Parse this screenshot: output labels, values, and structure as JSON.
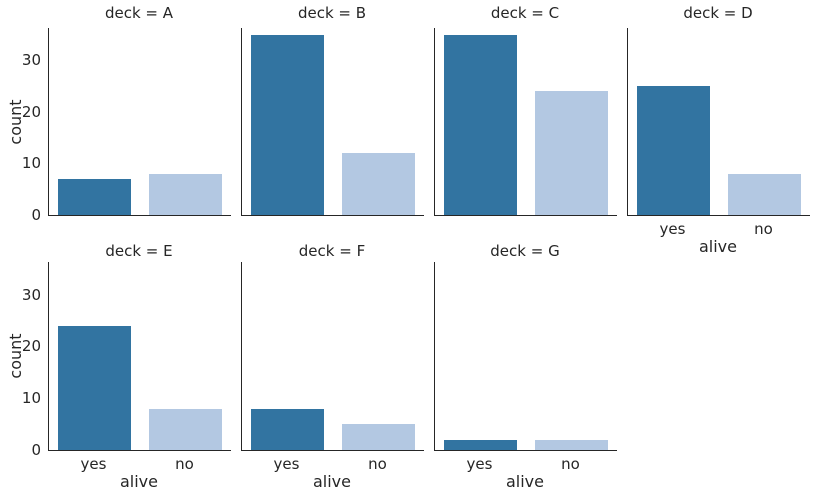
{
  "figure": {
    "background": "#ffffff",
    "text_color": "#262626",
    "spine_color": "#262626"
  },
  "chart_data": {
    "type": "bar",
    "title": "",
    "facet_variable": "deck",
    "x_variable": "alive",
    "categories": [
      "yes",
      "no"
    ],
    "xlabel": "alive",
    "ylabel": "count",
    "yticks": [
      0,
      10,
      20,
      30
    ],
    "ylim": [
      0,
      36.3
    ],
    "grid": false,
    "legend": "none",
    "series_colors": {
      "yes": "#3274a1",
      "no": "#b3c8e2"
    },
    "facets": [
      {
        "label": "deck = A",
        "values": {
          "yes": 7,
          "no": 8
        },
        "show_x_axis_labels": false,
        "show_y_axis_labels": true
      },
      {
        "label": "deck = B",
        "values": {
          "yes": 35,
          "no": 12
        },
        "show_x_axis_labels": false,
        "show_y_axis_labels": false
      },
      {
        "label": "deck = C",
        "values": {
          "yes": 35,
          "no": 24
        },
        "show_x_axis_labels": false,
        "show_y_axis_labels": false
      },
      {
        "label": "deck = D",
        "values": {
          "yes": 25,
          "no": 8
        },
        "show_x_axis_labels": true,
        "show_y_axis_labels": false
      },
      {
        "label": "deck = E",
        "values": {
          "yes": 24,
          "no": 8
        },
        "show_x_axis_labels": true,
        "show_y_axis_labels": true
      },
      {
        "label": "deck = F",
        "values": {
          "yes": 8,
          "no": 5
        },
        "show_x_axis_labels": true,
        "show_y_axis_labels": false
      },
      {
        "label": "deck = G",
        "values": {
          "yes": 2,
          "no": 2
        },
        "show_x_axis_labels": true,
        "show_y_axis_labels": false
      }
    ]
  }
}
